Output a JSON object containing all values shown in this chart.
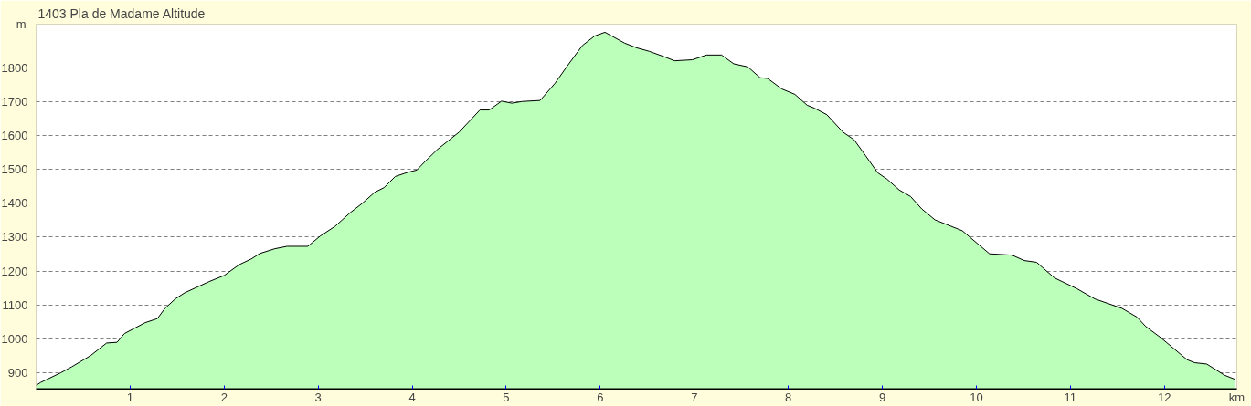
{
  "chart_data": {
    "type": "area",
    "title": "1403 Pla de Madame Altitude",
    "xlabel": "km",
    "ylabel": "m",
    "x": [
      0,
      0.05,
      0.26,
      0.38,
      0.58,
      0.75,
      0.86,
      0.94,
      1.16,
      1.29,
      1.37,
      1.48,
      1.58,
      1.84,
      2.0,
      2.16,
      2.29,
      2.38,
      2.54,
      2.67,
      2.89,
      3.02,
      3.18,
      3.34,
      3.47,
      3.6,
      3.7,
      3.82,
      3.95,
      4.05,
      4.14,
      4.27,
      4.5,
      4.72,
      4.82,
      4.95,
      5.06,
      5.17,
      5.36,
      5.52,
      5.65,
      5.81,
      5.94,
      6.05,
      6.26,
      6.39,
      6.52,
      6.68,
      6.79,
      6.98,
      7.13,
      7.29,
      7.42,
      7.57,
      7.7,
      7.78,
      7.93,
      8.07,
      8.2,
      8.28,
      8.41,
      8.58,
      8.7,
      8.82,
      8.95,
      9.05,
      9.18,
      9.3,
      9.42,
      9.56,
      9.85,
      10.14,
      10.38,
      10.51,
      10.64,
      10.83,
      11.07,
      11.26,
      11.55,
      11.71,
      11.8,
      11.96,
      12.24,
      12.32,
      12.45,
      12.64,
      12.75
    ],
    "series": [
      {
        "color": "#bbffbb",
        "values": [
          863,
          872,
          900,
          918,
          951,
          988,
          990,
          1016,
          1048,
          1060,
          1090,
          1118,
          1136,
          1169,
          1187,
          1219,
          1236,
          1252,
          1266,
          1273,
          1273,
          1303,
          1332,
          1372,
          1400,
          1432,
          1446,
          1479,
          1491,
          1498,
          1524,
          1559,
          1610,
          1675,
          1675,
          1701,
          1695,
          1700,
          1703,
          1754,
          1805,
          1865,
          1893,
          1904,
          1872,
          1858,
          1848,
          1832,
          1820,
          1823,
          1837,
          1837,
          1811,
          1802,
          1770,
          1768,
          1737,
          1721,
          1689,
          1680,
          1661,
          1610,
          1587,
          1541,
          1490,
          1471,
          1439,
          1420,
          1383,
          1351,
          1319,
          1251,
          1247,
          1231,
          1226,
          1180,
          1148,
          1118,
          1090,
          1064,
          1037,
          1004,
          939,
          930,
          926,
          893,
          881
        ]
      }
    ],
    "xlim": [
      0,
      12.77
    ],
    "ylim": [
      852,
      1928
    ],
    "xticks": [
      1,
      2,
      3,
      4,
      5,
      6,
      7,
      8,
      9,
      10,
      11,
      12
    ],
    "yticks": [
      900,
      1000,
      1100,
      1200,
      1300,
      1400,
      1500,
      1600,
      1700,
      1800
    ],
    "grid": "y"
  }
}
